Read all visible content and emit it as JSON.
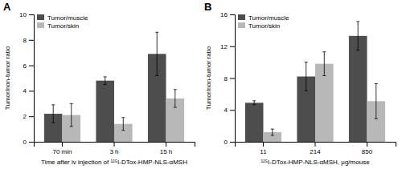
{
  "chart_data": [
    {
      "type": "bar",
      "title": "A",
      "xlabel": "Time after iv injection of ¹²⁵I-DTox-HMP-NLS-αMSH",
      "ylabel": "Tumor/non-tumor ratio",
      "categories": [
        "70 min",
        "3 h",
        "15 h"
      ],
      "series": [
        {
          "name": "Tumor/muscle",
          "color": "#4d4d4d",
          "values": [
            2.2,
            4.8,
            6.9
          ],
          "errors": [
            0.7,
            0.3,
            1.7
          ]
        },
        {
          "name": "Tumor/skin",
          "color": "#b8b8b8",
          "values": [
            2.1,
            1.4,
            3.4
          ],
          "errors": [
            0.9,
            0.5,
            0.7
          ]
        }
      ],
      "ylim": [
        0,
        10
      ],
      "yticks": [
        0,
        2,
        4,
        6,
        8,
        10
      ],
      "grid": false,
      "legend": "upper left"
    },
    {
      "type": "bar",
      "title": "B",
      "xlabel": "¹²⁵I-DTox-HMP-NLS-αMSH, μg/mouse",
      "ylabel": "Tumor/non-tumor ratio",
      "categories": [
        "11",
        "214",
        "850"
      ],
      "series": [
        {
          "name": "Tumor/muscle",
          "color": "#4d4d4d",
          "values": [
            4.9,
            8.2,
            13.3
          ],
          "errors": [
            0.25,
            1.8,
            1.8
          ]
        },
        {
          "name": "Tumor/skin",
          "color": "#b8b8b8",
          "values": [
            1.2,
            9.8,
            5.1
          ],
          "errors": [
            0.4,
            1.5,
            2.2
          ]
        }
      ],
      "ylim": [
        0,
        16
      ],
      "yticks": [
        0,
        4,
        8,
        12,
        16
      ],
      "grid": false,
      "legend": "upper left"
    }
  ]
}
